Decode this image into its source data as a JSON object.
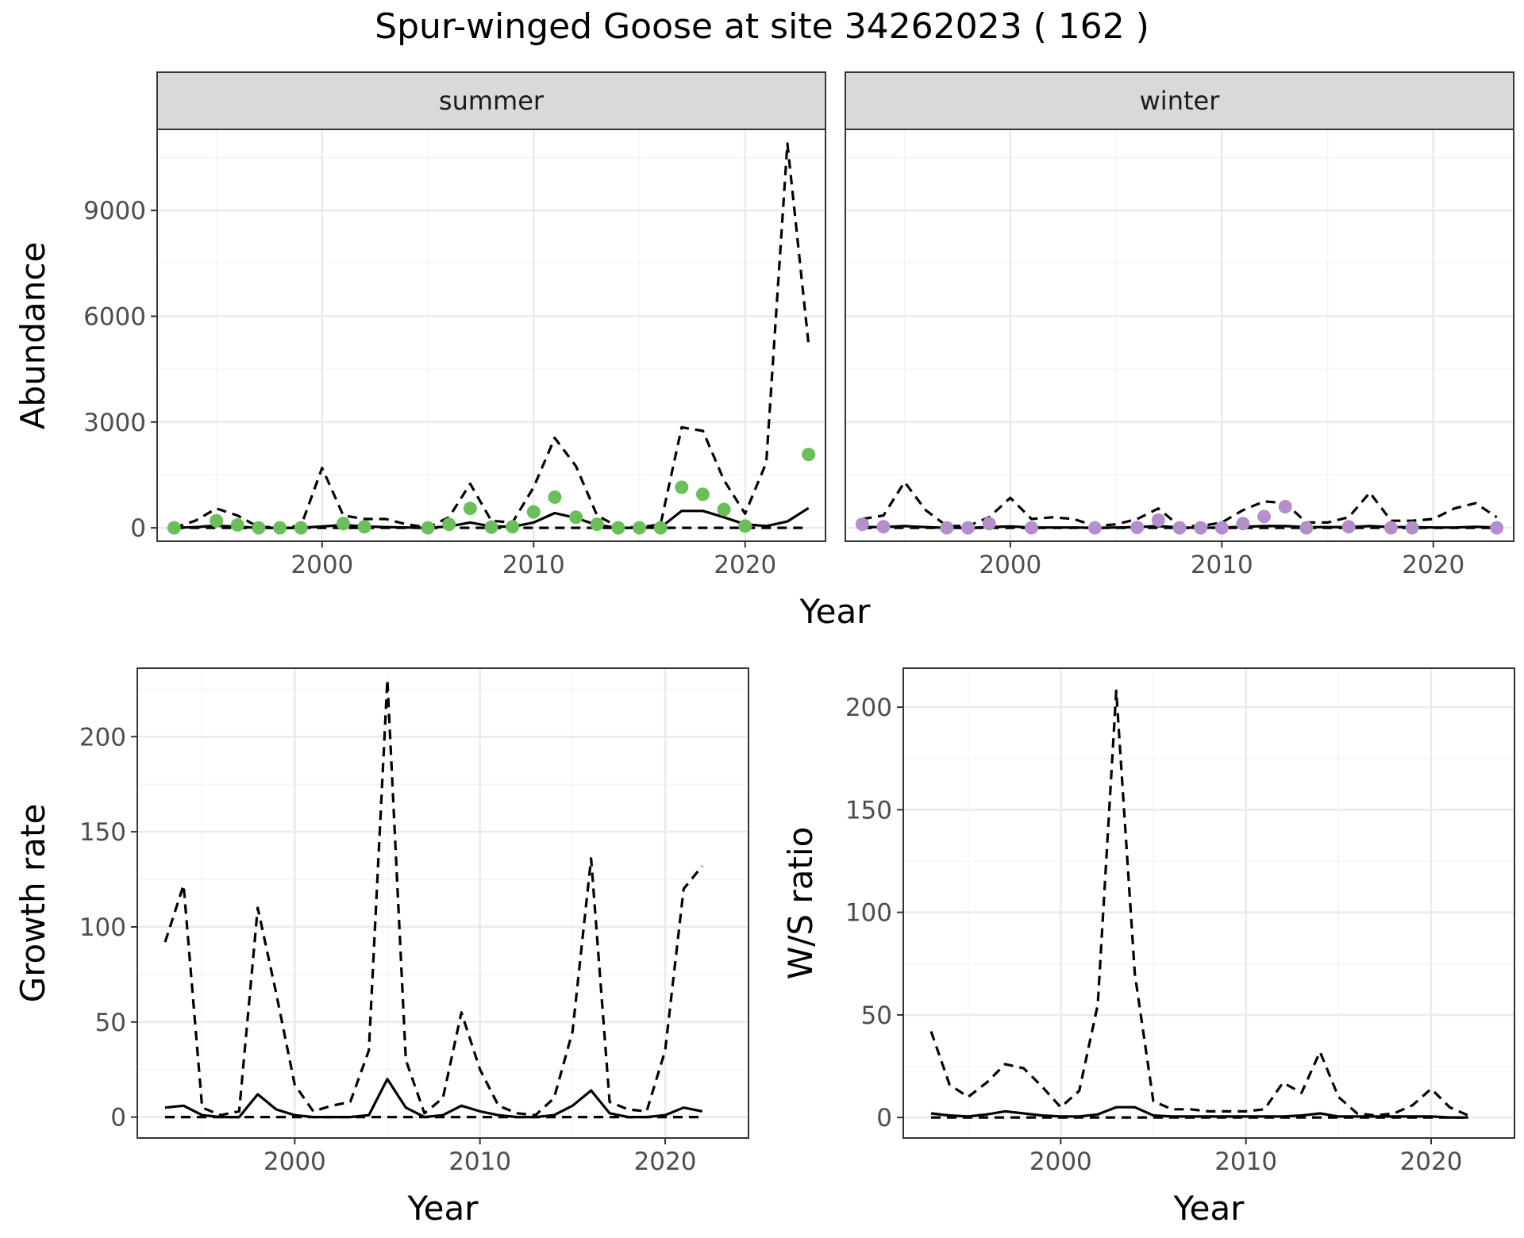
{
  "title": "Spur-winged Goose at site 34262023 ( 162 )",
  "colors": {
    "summer_points": "#6bbf59",
    "winter_points": "#b48fcb"
  },
  "chart_data": [
    {
      "type": "line",
      "facet": "summer",
      "xlabel": "Year",
      "ylabel": "Abundance",
      "xlim": [
        1992.2,
        2023.8
      ],
      "ylim": [
        -380,
        11300
      ],
      "x_ticks": [
        2000,
        2010,
        2020
      ],
      "y_ticks": [
        0,
        3000,
        6000,
        9000
      ],
      "grid": true,
      "point_color": "#6bbf59",
      "points": {
        "x": [
          1993,
          1995,
          1996,
          1997,
          1998,
          1999,
          2001,
          2002,
          2005,
          2006,
          2007,
          2008,
          2009,
          2010,
          2011,
          2012,
          2013,
          2014,
          2015,
          2016,
          2017,
          2018,
          2019,
          2020,
          2023
        ],
        "y": [
          0,
          200,
          80,
          0,
          0,
          0,
          120,
          30,
          0,
          100,
          550,
          20,
          30,
          450,
          870,
          300,
          100,
          0,
          0,
          0,
          1150,
          950,
          520,
          50,
          2080
        ]
      },
      "series": [
        {
          "style": "solid",
          "x": [
            1993,
            1994,
            1995,
            1996,
            1997,
            1998,
            1999,
            2000,
            2001,
            2002,
            2003,
            2004,
            2005,
            2006,
            2007,
            2008,
            2009,
            2010,
            2011,
            2012,
            2013,
            2014,
            2015,
            2016,
            2017,
            2018,
            2019,
            2020,
            2021,
            2022,
            2023
          ],
          "y": [
            0,
            20,
            60,
            30,
            0,
            0,
            0,
            40,
            80,
            40,
            20,
            10,
            0,
            40,
            150,
            40,
            30,
            150,
            420,
            280,
            80,
            0,
            0,
            10,
            480,
            480,
            300,
            100,
            50,
            180,
            560
          ]
        },
        {
          "style": "dashed",
          "x": [
            1993,
            1994,
            1995,
            1996,
            1997,
            1998,
            1999,
            2000,
            2001,
            2002,
            2003,
            2004,
            2005,
            2006,
            2007,
            2008,
            2009,
            2010,
            2011,
            2012,
            2013,
            2014,
            2015,
            2016,
            2017,
            2018,
            2019,
            2020,
            2021,
            2022,
            2023
          ],
          "y": [
            0,
            200,
            550,
            350,
            20,
            20,
            50,
            1700,
            350,
            250,
            250,
            100,
            10,
            300,
            1250,
            200,
            150,
            1150,
            2550,
            1750,
            350,
            30,
            10,
            100,
            2850,
            2750,
            1350,
            400,
            1850,
            10900,
            5200
          ]
        },
        {
          "style": "dashed",
          "x": [
            1993,
            2023
          ],
          "y": [
            0,
            0
          ]
        }
      ]
    },
    {
      "type": "line",
      "facet": "winter",
      "xlabel": "Year",
      "ylabel": "Abundance",
      "xlim": [
        1992.2,
        2023.8
      ],
      "ylim": [
        -380,
        11300
      ],
      "x_ticks": [
        2000,
        2010,
        2020
      ],
      "y_ticks": [
        0,
        3000,
        6000,
        9000
      ],
      "grid": true,
      "point_color": "#b48fcb",
      "points": {
        "x": [
          1993,
          1994,
          1997,
          1998,
          1999,
          2001,
          2004,
          2006,
          2007,
          2008,
          2009,
          2010,
          2011,
          2012,
          2013,
          2014,
          2016,
          2018,
          2019,
          2023
        ],
        "y": [
          100,
          30,
          0,
          0,
          120,
          0,
          0,
          10,
          220,
          0,
          0,
          0,
          120,
          320,
          600,
          0,
          30,
          0,
          0,
          0
        ]
      },
      "series": [
        {
          "style": "solid",
          "x": [
            1993,
            1994,
            1995,
            1996,
            1997,
            1998,
            1999,
            2000,
            2001,
            2002,
            2003,
            2004,
            2005,
            2006,
            2007,
            2008,
            2009,
            2010,
            2011,
            2012,
            2013,
            2014,
            2015,
            2016,
            2017,
            2018,
            2019,
            2020,
            2021,
            2022,
            2023
          ],
          "y": [
            20,
            20,
            50,
            20,
            0,
            0,
            20,
            40,
            10,
            10,
            10,
            0,
            10,
            20,
            50,
            10,
            0,
            10,
            30,
            50,
            50,
            20,
            20,
            20,
            50,
            20,
            20,
            10,
            10,
            30,
            10
          ]
        },
        {
          "style": "dashed",
          "x": [
            1993,
            1994,
            1995,
            1996,
            1997,
            1998,
            1999,
            2000,
            2001,
            2002,
            2003,
            2004,
            2005,
            2006,
            2007,
            2008,
            2009,
            2010,
            2011,
            2012,
            2013,
            2014,
            2015,
            2016,
            2017,
            2018,
            2019,
            2020,
            2021,
            2022,
            2023
          ],
          "y": [
            250,
            350,
            1300,
            500,
            50,
            50,
            300,
            850,
            250,
            300,
            250,
            50,
            100,
            250,
            550,
            50,
            50,
            150,
            500,
            750,
            700,
            150,
            150,
            300,
            1000,
            200,
            200,
            250,
            550,
            700,
            300
          ]
        },
        {
          "style": "dashed",
          "x": [
            1993,
            2023
          ],
          "y": [
            0,
            0
          ]
        }
      ]
    },
    {
      "type": "line",
      "xlabel": "Year",
      "ylabel": "Growth rate",
      "xlim": [
        1991.5,
        2024.5
      ],
      "ylim": [
        -11,
        236
      ],
      "x_ticks": [
        2000,
        2010,
        2020
      ],
      "y_ticks": [
        0,
        50,
        100,
        150,
        200
      ],
      "grid": true,
      "series": [
        {
          "style": "solid",
          "x": [
            1993,
            1994,
            1995,
            1996,
            1997,
            1998,
            1999,
            2000,
            2001,
            2002,
            2003,
            2004,
            2005,
            2006,
            2007,
            2008,
            2009,
            2010,
            2011,
            2012,
            2013,
            2014,
            2015,
            2016,
            2017,
            2018,
            2019,
            2020,
            2021,
            2022
          ],
          "y": [
            5,
            6,
            1,
            0,
            0,
            12,
            4,
            1,
            0,
            0,
            0,
            1,
            20,
            5,
            0,
            1,
            6,
            3,
            1,
            0,
            0,
            1,
            6,
            14,
            2,
            0,
            0,
            1,
            5,
            3
          ]
        },
        {
          "style": "dashed",
          "x": [
            1993,
            1994,
            1995,
            1996,
            1997,
            1998,
            1999,
            2000,
            2001,
            2002,
            2003,
            2004,
            2005,
            2006,
            2007,
            2008,
            2009,
            2010,
            2011,
            2012,
            2013,
            2014,
            2015,
            2016,
            2017,
            2018,
            2019,
            2020,
            2021,
            2022
          ],
          "y": [
            92,
            122,
            5,
            1,
            3,
            110,
            65,
            17,
            3,
            6,
            8,
            35,
            230,
            30,
            2,
            10,
            55,
            25,
            6,
            2,
            1,
            10,
            45,
            136,
            8,
            4,
            3,
            35,
            120,
            132
          ]
        },
        {
          "style": "dashed",
          "x": [
            1993,
            2022
          ],
          "y": [
            0,
            0
          ]
        }
      ]
    },
    {
      "type": "line",
      "xlabel": "Year",
      "ylabel": "W/S ratio",
      "xlim": [
        1991.5,
        2024.5
      ],
      "ylim": [
        -10,
        219
      ],
      "x_ticks": [
        2000,
        2010,
        2020
      ],
      "y_ticks": [
        0,
        50,
        100,
        150,
        200
      ],
      "grid": true,
      "series": [
        {
          "style": "solid",
          "x": [
            1993,
            1994,
            1995,
            1996,
            1997,
            1998,
            1999,
            2000,
            2001,
            2002,
            2003,
            2004,
            2005,
            2006,
            2007,
            2008,
            2009,
            2010,
            2011,
            2012,
            2013,
            2014,
            2015,
            2016,
            2017,
            2018,
            2019,
            2020,
            2021,
            2022
          ],
          "y": [
            2,
            1,
            0.5,
            1.5,
            3,
            2,
            1,
            0.5,
            0.5,
            1.5,
            5,
            5,
            1,
            0.5,
            0.5,
            0.5,
            0.5,
            0.5,
            0.5,
            0.5,
            1,
            2,
            0.5,
            0.5,
            0.5,
            0.5,
            0.5,
            0.5,
            0,
            0
          ]
        },
        {
          "style": "dashed",
          "x": [
            1993,
            1994,
            1995,
            1996,
            1997,
            1998,
            1999,
            2000,
            2001,
            2002,
            2003,
            2004,
            2005,
            2006,
            2007,
            2008,
            2009,
            2010,
            2011,
            2012,
            2013,
            2014,
            2015,
            2016,
            2017,
            2018,
            2019,
            2020,
            2021,
            2022
          ],
          "y": [
            42,
            16,
            10,
            17,
            26,
            24,
            15,
            5,
            13,
            55,
            208,
            70,
            8,
            4,
            4,
            3,
            3,
            3,
            4,
            17,
            12,
            32,
            10,
            2,
            1,
            2,
            6,
            14,
            5,
            1
          ]
        },
        {
          "style": "dashed",
          "x": [
            1993,
            2022
          ],
          "y": [
            0,
            0
          ]
        }
      ]
    }
  ]
}
